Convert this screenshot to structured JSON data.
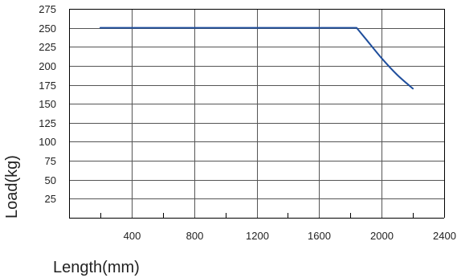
{
  "chart_data": {
    "type": "line",
    "title": "",
    "xlabel": "Length(mm)",
    "ylabel": "Load(kg)",
    "xlim": [
      0,
      2400
    ],
    "ylim": [
      0,
      275
    ],
    "x_tick_labels": [
      "400",
      "800",
      "1200",
      "1600",
      "2000",
      "2400"
    ],
    "y_tick_labels": [
      "25",
      "50",
      "75",
      "100",
      "125",
      "150",
      "175",
      "200",
      "225",
      "250",
      "275"
    ],
    "grid": true,
    "series": [
      {
        "color": "#1f4e9c",
        "points": [
          {
            "x": 200,
            "y": 250
          },
          {
            "x": 1840,
            "y": 250
          },
          {
            "x": 1900,
            "y": 235
          },
          {
            "x": 2000,
            "y": 210
          },
          {
            "x": 2100,
            "y": 188
          },
          {
            "x": 2200,
            "y": 170
          }
        ]
      }
    ]
  }
}
